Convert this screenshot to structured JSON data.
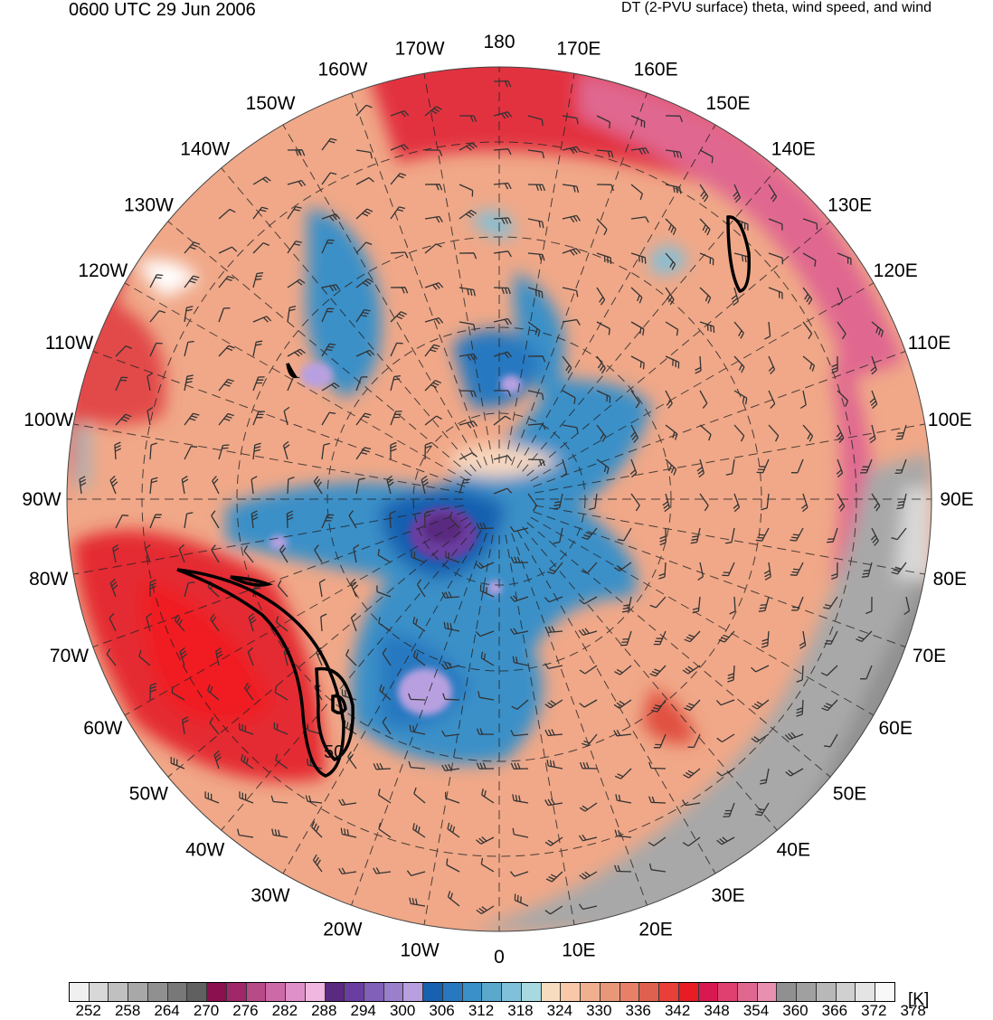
{
  "header": {
    "valid_time": "0600 UTC 29 Jun 2006",
    "product": "DT (2-PVU surface) theta, wind speed, and wind"
  },
  "map": {
    "projection": "north-polar-stereographic",
    "longitude_labels": [
      "180",
      "170E",
      "160E",
      "150E",
      "140E",
      "130E",
      "120E",
      "110E",
      "100E",
      "90E",
      "80E",
      "70E",
      "60E",
      "50E",
      "40E",
      "30E",
      "20E",
      "10E",
      "0",
      "10W",
      "20W",
      "30W",
      "40W",
      "50W",
      "60W",
      "70W",
      "80W",
      "90W",
      "100W",
      "110W",
      "120W",
      "130W",
      "140W",
      "150W",
      "160W",
      "170W"
    ],
    "contour_label": "50"
  },
  "colorbar": {
    "unit": "[K]",
    "tick_labels": [
      "252",
      "258",
      "264",
      "270",
      "276",
      "282",
      "288",
      "294",
      "300",
      "306",
      "312",
      "318",
      "324",
      "330",
      "336",
      "342",
      "348",
      "354",
      "360",
      "366",
      "372",
      "378"
    ],
    "colors": [
      "#f0f0f0",
      "#d8d8d8",
      "#c0c0c0",
      "#a8a8a8",
      "#909090",
      "#787878",
      "#606060",
      "#8a1050",
      "#a02868",
      "#b84a88",
      "#cc6aa8",
      "#e090c8",
      "#f0b8e0",
      "#5a2a80",
      "#6a3ea0",
      "#8060b8",
      "#9a80cc",
      "#b8a0e0",
      "#1860b0",
      "#2878c0",
      "#3a90c8",
      "#5aa8cc",
      "#80c0d8",
      "#a8d8e0",
      "#f8dcc0",
      "#f8c8a8",
      "#f0b090",
      "#e89878",
      "#e88068",
      "#e06050",
      "#e84038",
      "#e81c24",
      "#d81850",
      "#e04070",
      "#e06890",
      "#e890b0",
      "#909090",
      "#a0a0a0",
      "#b8b8b8",
      "#d0d0d0",
      "#e4e4e4",
      "#f8f8f8"
    ]
  }
}
